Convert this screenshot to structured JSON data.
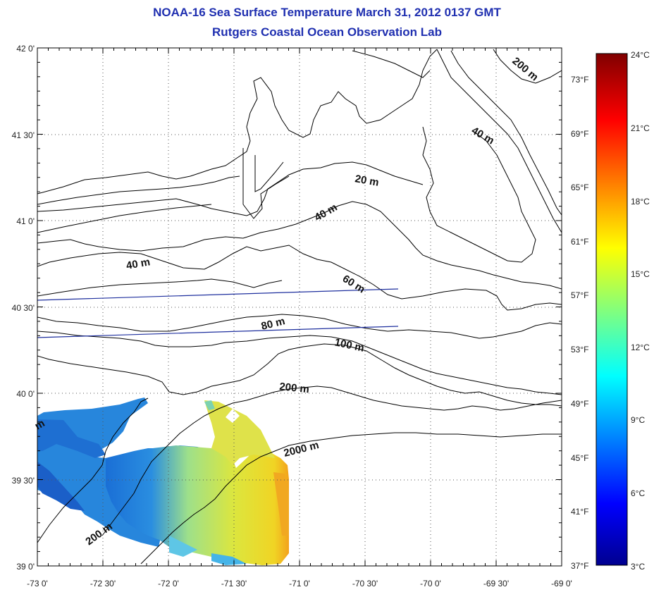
{
  "header": {
    "title": "NOAA-16 Sea Surface Temperature March 31, 2012 0137 GMT",
    "subtitle": "Rutgers Coastal Ocean Observation Lab"
  },
  "map": {
    "lat_labels": [
      "42 0'",
      "41 30'",
      "41 0'",
      "40 30'",
      "40 0'",
      "39 30'",
      "39 0'"
    ],
    "lon_labels": [
      "-73 0'",
      "-72 30'",
      "-72 0'",
      "-71 30'",
      "-71 0'",
      "-70 30'",
      "-70 0'",
      "-69 30'",
      "-69 0'"
    ],
    "contour_labels": [
      "20 m",
      "40 m",
      "40 m",
      "40 m",
      "60 m",
      "80 m",
      "100 m",
      "200 m",
      "200 m",
      "200 m",
      "2000 m"
    ],
    "partial_label": "m"
  },
  "colorbar": {
    "celsius_labels": [
      "24°C",
      "21°C",
      "18°C",
      "15°C",
      "12°C",
      "9°C",
      "6°C",
      "3°C"
    ],
    "fahrenheit_labels": [
      "73°F",
      "69°F",
      "65°F",
      "61°F",
      "57°F",
      "53°F",
      "49°F",
      "45°F",
      "41°F",
      "37°F"
    ],
    "range_c": [
      3,
      24
    ],
    "range_f": [
      37,
      75
    ]
  },
  "colors": {
    "title": "#1f2fb0",
    "coast": "#000000",
    "ship_tracks": "#1e2f9e",
    "sst_cold": "#1e7ad8",
    "sst_mid": "#2ec8e6",
    "sst_warm": "#e8e63a",
    "sst_hot": "#f29a1a"
  }
}
